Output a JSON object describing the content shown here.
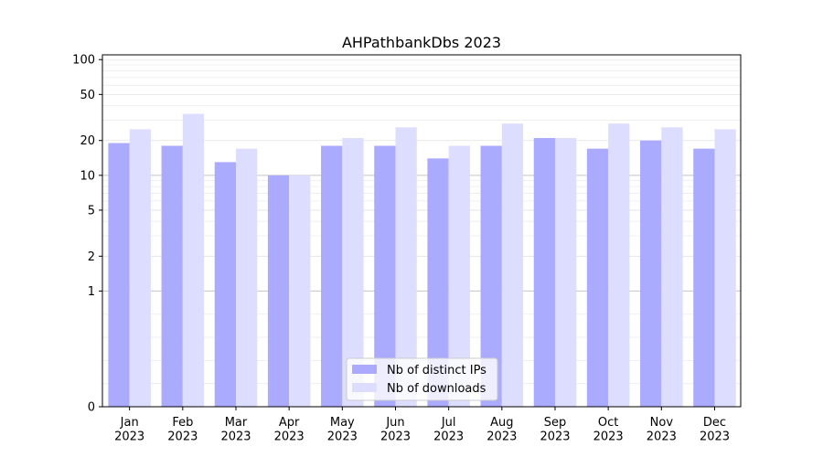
{
  "chart_data": {
    "type": "bar",
    "title": "AHPathbankDbs 2023",
    "xlabel": "",
    "ylabel": "",
    "yscale": "symlog",
    "yticks": [
      0,
      1,
      2,
      5,
      10,
      20,
      50,
      100
    ],
    "ylim": [
      0,
      110
    ],
    "grid": true,
    "legend_position": "bottom-center",
    "categories": [
      "Jan\n2023",
      "Feb\n2023",
      "Mar\n2023",
      "Apr\n2023",
      "May\n2023",
      "Jun\n2023",
      "Jul\n2023",
      "Aug\n2023",
      "Sep\n2023",
      "Oct\n2023",
      "Nov\n2023",
      "Dec\n2023"
    ],
    "series": [
      {
        "name": "Nb of distinct IPs",
        "color": "#aaaaff",
        "values": [
          19,
          18,
          13,
          10,
          18,
          18,
          14,
          18,
          21,
          17,
          20,
          17
        ]
      },
      {
        "name": "Nb of downloads",
        "color": "#ddddff",
        "values": [
          25,
          34,
          17,
          10,
          21,
          26,
          18,
          28,
          21,
          28,
          26,
          25
        ]
      }
    ]
  }
}
